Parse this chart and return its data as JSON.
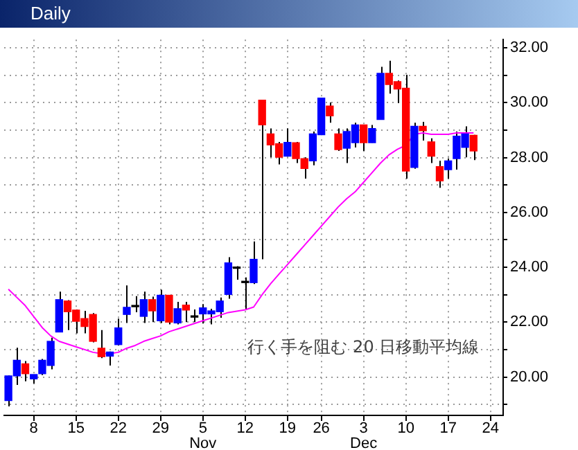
{
  "chart_data": {
    "type": "candlestick",
    "title": "Daily",
    "categories": [
      null,
      null,
      null,
      "8",
      null,
      null,
      null,
      null,
      "15",
      null,
      null,
      null,
      null,
      "22",
      null,
      null,
      null,
      null,
      "29",
      null,
      null,
      null,
      null,
      "5\nNov",
      null,
      null,
      null,
      null,
      "12",
      null,
      null,
      null,
      null,
      "19",
      null,
      null,
      null,
      "26",
      null,
      null,
      null,
      null,
      "3\nDec",
      null,
      null,
      null,
      null,
      "10",
      null,
      null,
      null,
      null,
      "17",
      null,
      null,
      null,
      null,
      "24",
      null
    ],
    "series": [
      {
        "ohlc": [
          [
            19.14,
            20.05,
            18.93,
            20.04
          ],
          [
            20.04,
            21.07,
            19.71,
            20.61
          ],
          [
            20.48,
            20.58,
            19.84,
            20.12
          ],
          [
            19.93,
            20.09,
            19.76,
            20.09
          ],
          [
            20.12,
            20.66,
            20.07,
            20.61
          ],
          [
            20.42,
            21.43,
            20.28,
            21.3
          ],
          [
            21.64,
            23.11,
            21.64,
            22.82
          ],
          [
            22.77,
            22.8,
            21.71,
            22.38
          ],
          [
            22.44,
            22.46,
            21.59,
            22.03
          ],
          [
            22.13,
            22.41,
            21.59,
            21.84
          ],
          [
            22.28,
            22.33,
            21.26,
            21.3
          ],
          [
            21.05,
            21.71,
            20.69,
            20.74
          ],
          [
            20.76,
            20.93,
            20.42,
            20.91
          ],
          [
            21.18,
            22.13,
            21.15,
            21.79
          ],
          [
            22.28,
            23.34,
            21.97,
            22.54
          ],
          [
            22.56,
            22.95,
            22.36,
            22.56
          ],
          [
            22.21,
            23.11,
            21.97,
            22.82
          ],
          [
            22.82,
            22.93,
            22.0,
            22.41
          ],
          [
            22.05,
            23.18,
            21.97,
            22.98
          ],
          [
            22.98,
            22.98,
            21.92,
            22.0
          ],
          [
            21.97,
            22.74,
            21.92,
            22.49
          ],
          [
            22.62,
            22.74,
            22.0,
            22.44
          ],
          [
            22.18,
            22.46,
            22.0,
            22.18
          ],
          [
            22.3,
            22.66,
            21.95,
            22.52
          ],
          [
            22.3,
            22.49,
            21.92,
            22.41
          ],
          [
            22.38,
            22.9,
            22.16,
            22.77
          ],
          [
            23.01,
            24.37,
            22.85,
            24.16
          ],
          [
            23.96,
            24.04,
            23.55,
            23.96
          ],
          [
            23.44,
            23.63,
            22.49,
            23.44
          ],
          [
            23.44,
            24.94,
            23.39,
            24.29
          ],
          [
            30.09,
            30.09,
            24.29,
            29.19
          ],
          [
            28.86,
            29.06,
            28.01,
            28.46
          ],
          [
            28.5,
            28.57,
            27.75,
            28.01
          ],
          [
            28.05,
            29.06,
            28.05,
            28.55
          ],
          [
            28.54,
            28.57,
            27.8,
            27.96
          ],
          [
            27.96,
            28.01,
            27.23,
            27.6
          ],
          [
            27.88,
            28.95,
            27.72,
            28.86
          ],
          [
            28.83,
            30.17,
            28.83,
            30.17
          ],
          [
            29.88,
            30.01,
            29.27,
            29.52
          ],
          [
            28.86,
            29.06,
            28.24,
            28.29
          ],
          [
            28.34,
            29.06,
            27.8,
            28.95
          ],
          [
            28.54,
            29.27,
            28.37,
            29.19
          ],
          [
            29.19,
            29.19,
            28.24,
            28.54
          ],
          [
            28.54,
            29.19,
            28.54,
            29.06
          ],
          [
            29.39,
            31.31,
            29.39,
            31.07
          ],
          [
            31.07,
            31.53,
            30.33,
            30.66
          ],
          [
            30.77,
            30.81,
            29.98,
            30.5
          ],
          [
            30.53,
            31.02,
            27.23,
            27.51
          ],
          [
            27.64,
            29.27,
            27.59,
            29.14
          ],
          [
            29.14,
            29.3,
            28.62,
            28.98
          ],
          [
            28.57,
            28.7,
            27.8,
            28.05
          ],
          [
            27.67,
            27.88,
            26.9,
            27.15
          ],
          [
            27.56,
            27.96,
            27.23,
            27.88
          ],
          [
            27.96,
            28.95,
            27.56,
            28.78
          ],
          [
            28.37,
            29.14,
            28.01,
            28.86
          ],
          [
            28.81,
            28.83,
            27.91,
            28.24
          ],
          null,
          null,
          null
        ],
        "colors": [
          "#0000ff",
          "#0000ff",
          "#ff0000",
          "#0000ff",
          "#0000ff",
          "#0000ff",
          "#0000ff",
          "#ff0000",
          "#ff0000",
          "#ff0000",
          "#ff0000",
          "#ff0000",
          "#0000ff",
          "#0000ff",
          "#0000ff",
          "#000000",
          "#0000ff",
          "#ff0000",
          "#0000ff",
          "#ff0000",
          "#0000ff",
          "#ff0000",
          "#000000",
          "#0000ff",
          "#0000ff",
          "#0000ff",
          "#0000ff",
          "#000000",
          "#000000",
          "#0000ff",
          "#ff0000",
          "#ff0000",
          "#ff0000",
          "#0000ff",
          "#ff0000",
          "#ff0000",
          "#0000ff",
          "#0000ff",
          "#ff0000",
          "#ff0000",
          "#0000ff",
          "#0000ff",
          "#ff0000",
          "#0000ff",
          "#0000ff",
          "#ff0000",
          "#ff0000",
          "#ff0000",
          "#0000ff",
          "#ff0000",
          "#ff0000",
          "#ff0000",
          "#0000ff",
          "#0000ff",
          "#0000ff",
          "#ff0000",
          null,
          null,
          null
        ]
      },
      {
        "type": "line",
        "color": "#ff00ff",
        "values": [
          23.2,
          22.9,
          22.6,
          22.2,
          21.8,
          21.5,
          21.3,
          21.2,
          21.1,
          21.0,
          20.9,
          20.85,
          20.85,
          20.9,
          21.05,
          21.15,
          21.3,
          21.4,
          21.5,
          21.65,
          21.75,
          21.85,
          21.95,
          22.05,
          22.15,
          22.25,
          22.35,
          22.4,
          22.45,
          22.55,
          23.0,
          23.4,
          23.75,
          24.1,
          24.45,
          24.8,
          25.15,
          25.5,
          25.85,
          26.2,
          26.5,
          26.75,
          27.1,
          27.45,
          27.8,
          28.1,
          28.3,
          28.45,
          28.85,
          28.9,
          28.85,
          28.85,
          28.85,
          28.9,
          28.9,
          28.9,
          null,
          null,
          null
        ]
      }
    ],
    "ylim": [
      18.6,
      32.3
    ],
    "yticks": [
      {
        "value": 19,
        "label": null
      },
      {
        "value": 20,
        "label": "20.00"
      },
      {
        "value": 21,
        "label": null
      },
      {
        "value": 22,
        "label": "22.00"
      },
      {
        "value": 23,
        "label": null
      },
      {
        "value": 24,
        "label": "24.00"
      },
      {
        "value": 25,
        "label": null
      },
      {
        "value": 26,
        "label": "26.00"
      },
      {
        "value": 27,
        "label": null
      },
      {
        "value": 28,
        "label": "28.00"
      },
      {
        "value": 29,
        "label": null
      },
      {
        "value": 30,
        "label": "30.00"
      },
      {
        "value": 31,
        "label": null
      },
      {
        "value": 32,
        "label": "32.00"
      }
    ],
    "grid": true,
    "legend": false,
    "marker": "none",
    "line_style": "solid",
    "annotations": [
      "行く手を阻む 20 日移動平均線"
    ]
  }
}
